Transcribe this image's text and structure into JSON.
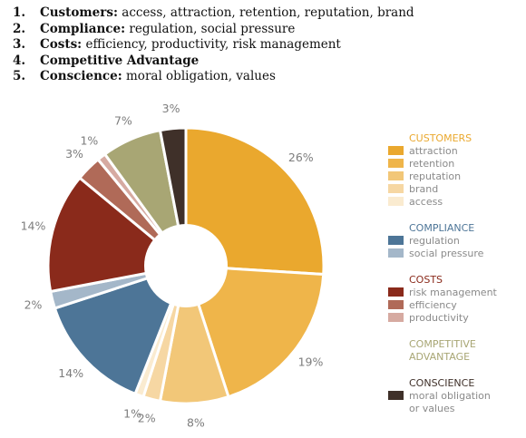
{
  "list": [
    {
      "num": "1.",
      "head": "Customers:",
      "rest": " access, attraction, retention, reputation, brand"
    },
    {
      "num": "2.",
      "head": "Compliance:",
      "rest": " regulation, social pressure"
    },
    {
      "num": "3.",
      "head": "Costs:",
      "rest": " efficiency, productivity, risk management"
    },
    {
      "num": "4.",
      "head": "Competitive Advantage",
      "rest": ""
    },
    {
      "num": "5.",
      "head": "Conscience:",
      "rest": " moral obligation, values"
    }
  ],
  "chart_data": {
    "type": "pie",
    "donut": true,
    "slices": [
      {
        "name": "attraction",
        "value": 26,
        "label": "26%",
        "color": "#eaa82e",
        "group": "CUSTOMERS"
      },
      {
        "name": "retention",
        "value": 19,
        "label": "19%",
        "color": "#efb54a",
        "group": "CUSTOMERS"
      },
      {
        "name": "reputation",
        "value": 8,
        "label": "8%",
        "color": "#f2c778",
        "group": "CUSTOMERS"
      },
      {
        "name": "brand",
        "value": 2,
        "label": "2%",
        "color": "#f6d7a3",
        "group": "CUSTOMERS"
      },
      {
        "name": "access",
        "value": 1,
        "label": "1%",
        "color": "#faebd0",
        "group": "CUSTOMERS"
      },
      {
        "name": "regulation",
        "value": 14,
        "label": "14%",
        "color": "#4d7597",
        "group": "COMPLIANCE"
      },
      {
        "name": "social pressure",
        "value": 2,
        "label": "2%",
        "color": "#a4b7c9",
        "group": "COMPLIANCE"
      },
      {
        "name": "risk management",
        "value": 14,
        "label": "14%",
        "color": "#8a2a1b",
        "group": "COSTS"
      },
      {
        "name": "efficiency",
        "value": 3,
        "label": "3%",
        "color": "#b06a58",
        "group": "COSTS"
      },
      {
        "name": "productivity",
        "value": 1,
        "label": "1%",
        "color": "#d6aaa1",
        "group": "COSTS"
      },
      {
        "name": "competitive advantage",
        "value": 7,
        "label": "7%",
        "color": "#a8a674",
        "group": "COMPETITIVE ADVANTAGE"
      },
      {
        "name": "moral obligation or values",
        "value": 3,
        "label": "3%",
        "color": "#3f3029",
        "group": "CONSCIENCE"
      }
    ],
    "legend": [
      {
        "heading": "CUSTOMERS",
        "heading_color": "#eaa82e",
        "items": [
          {
            "label": "attraction",
            "color": "#eaa82e"
          },
          {
            "label": "retention",
            "color": "#efb54a"
          },
          {
            "label": "reputation",
            "color": "#f2c778"
          },
          {
            "label": "brand",
            "color": "#f6d7a3"
          },
          {
            "label": "access",
            "color": "#faebd0"
          }
        ]
      },
      {
        "heading": "COMPLIANCE",
        "heading_color": "#4d7597",
        "items": [
          {
            "label": "regulation",
            "color": "#4d7597"
          },
          {
            "label": "social pressure",
            "color": "#a4b7c9"
          }
        ]
      },
      {
        "heading": "COSTS",
        "heading_color": "#8a2a1b",
        "items": [
          {
            "label": "risk management",
            "color": "#8a2a1b"
          },
          {
            "label": "efficiency",
            "color": "#b06a58"
          },
          {
            "label": "productivity",
            "color": "#d6aaa1"
          }
        ]
      },
      {
        "heading": "COMPETITIVE\nADVANTAGE",
        "heading_color": "#a8a674",
        "items": []
      },
      {
        "heading": "CONSCIENCE",
        "heading_color": "#3f3029",
        "items": [
          {
            "label": "moral obligation\nor values",
            "color": "#3f3029"
          }
        ]
      }
    ],
    "legend_placement": "right"
  }
}
